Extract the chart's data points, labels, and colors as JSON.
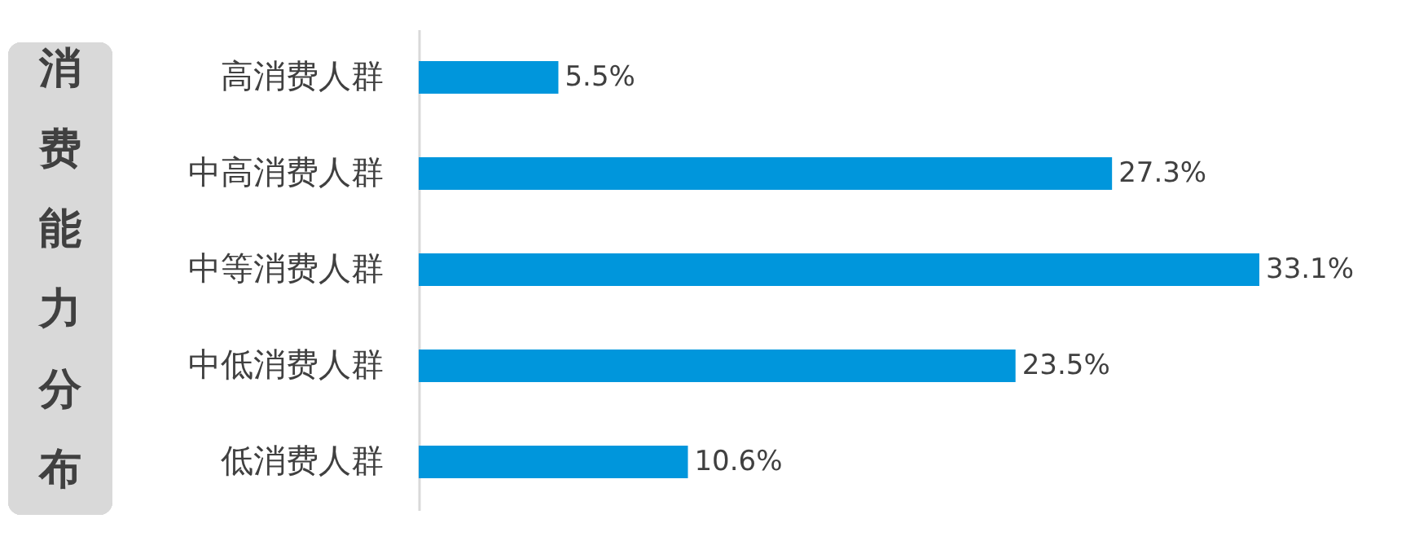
{
  "chart_data": {
    "type": "bar",
    "orientation": "horizontal",
    "title": "消费能力分布",
    "categories": [
      "高消费人群",
      "中高消费人群",
      "中等消费人群",
      "中低消费人群",
      "低消费人群"
    ],
    "values": [
      5.5,
      27.3,
      33.1,
      23.5,
      10.6
    ],
    "value_labels": [
      "5.5%",
      "27.3%",
      "33.1%",
      "23.5%",
      "10.6%"
    ],
    "color": "#0096dc"
  }
}
